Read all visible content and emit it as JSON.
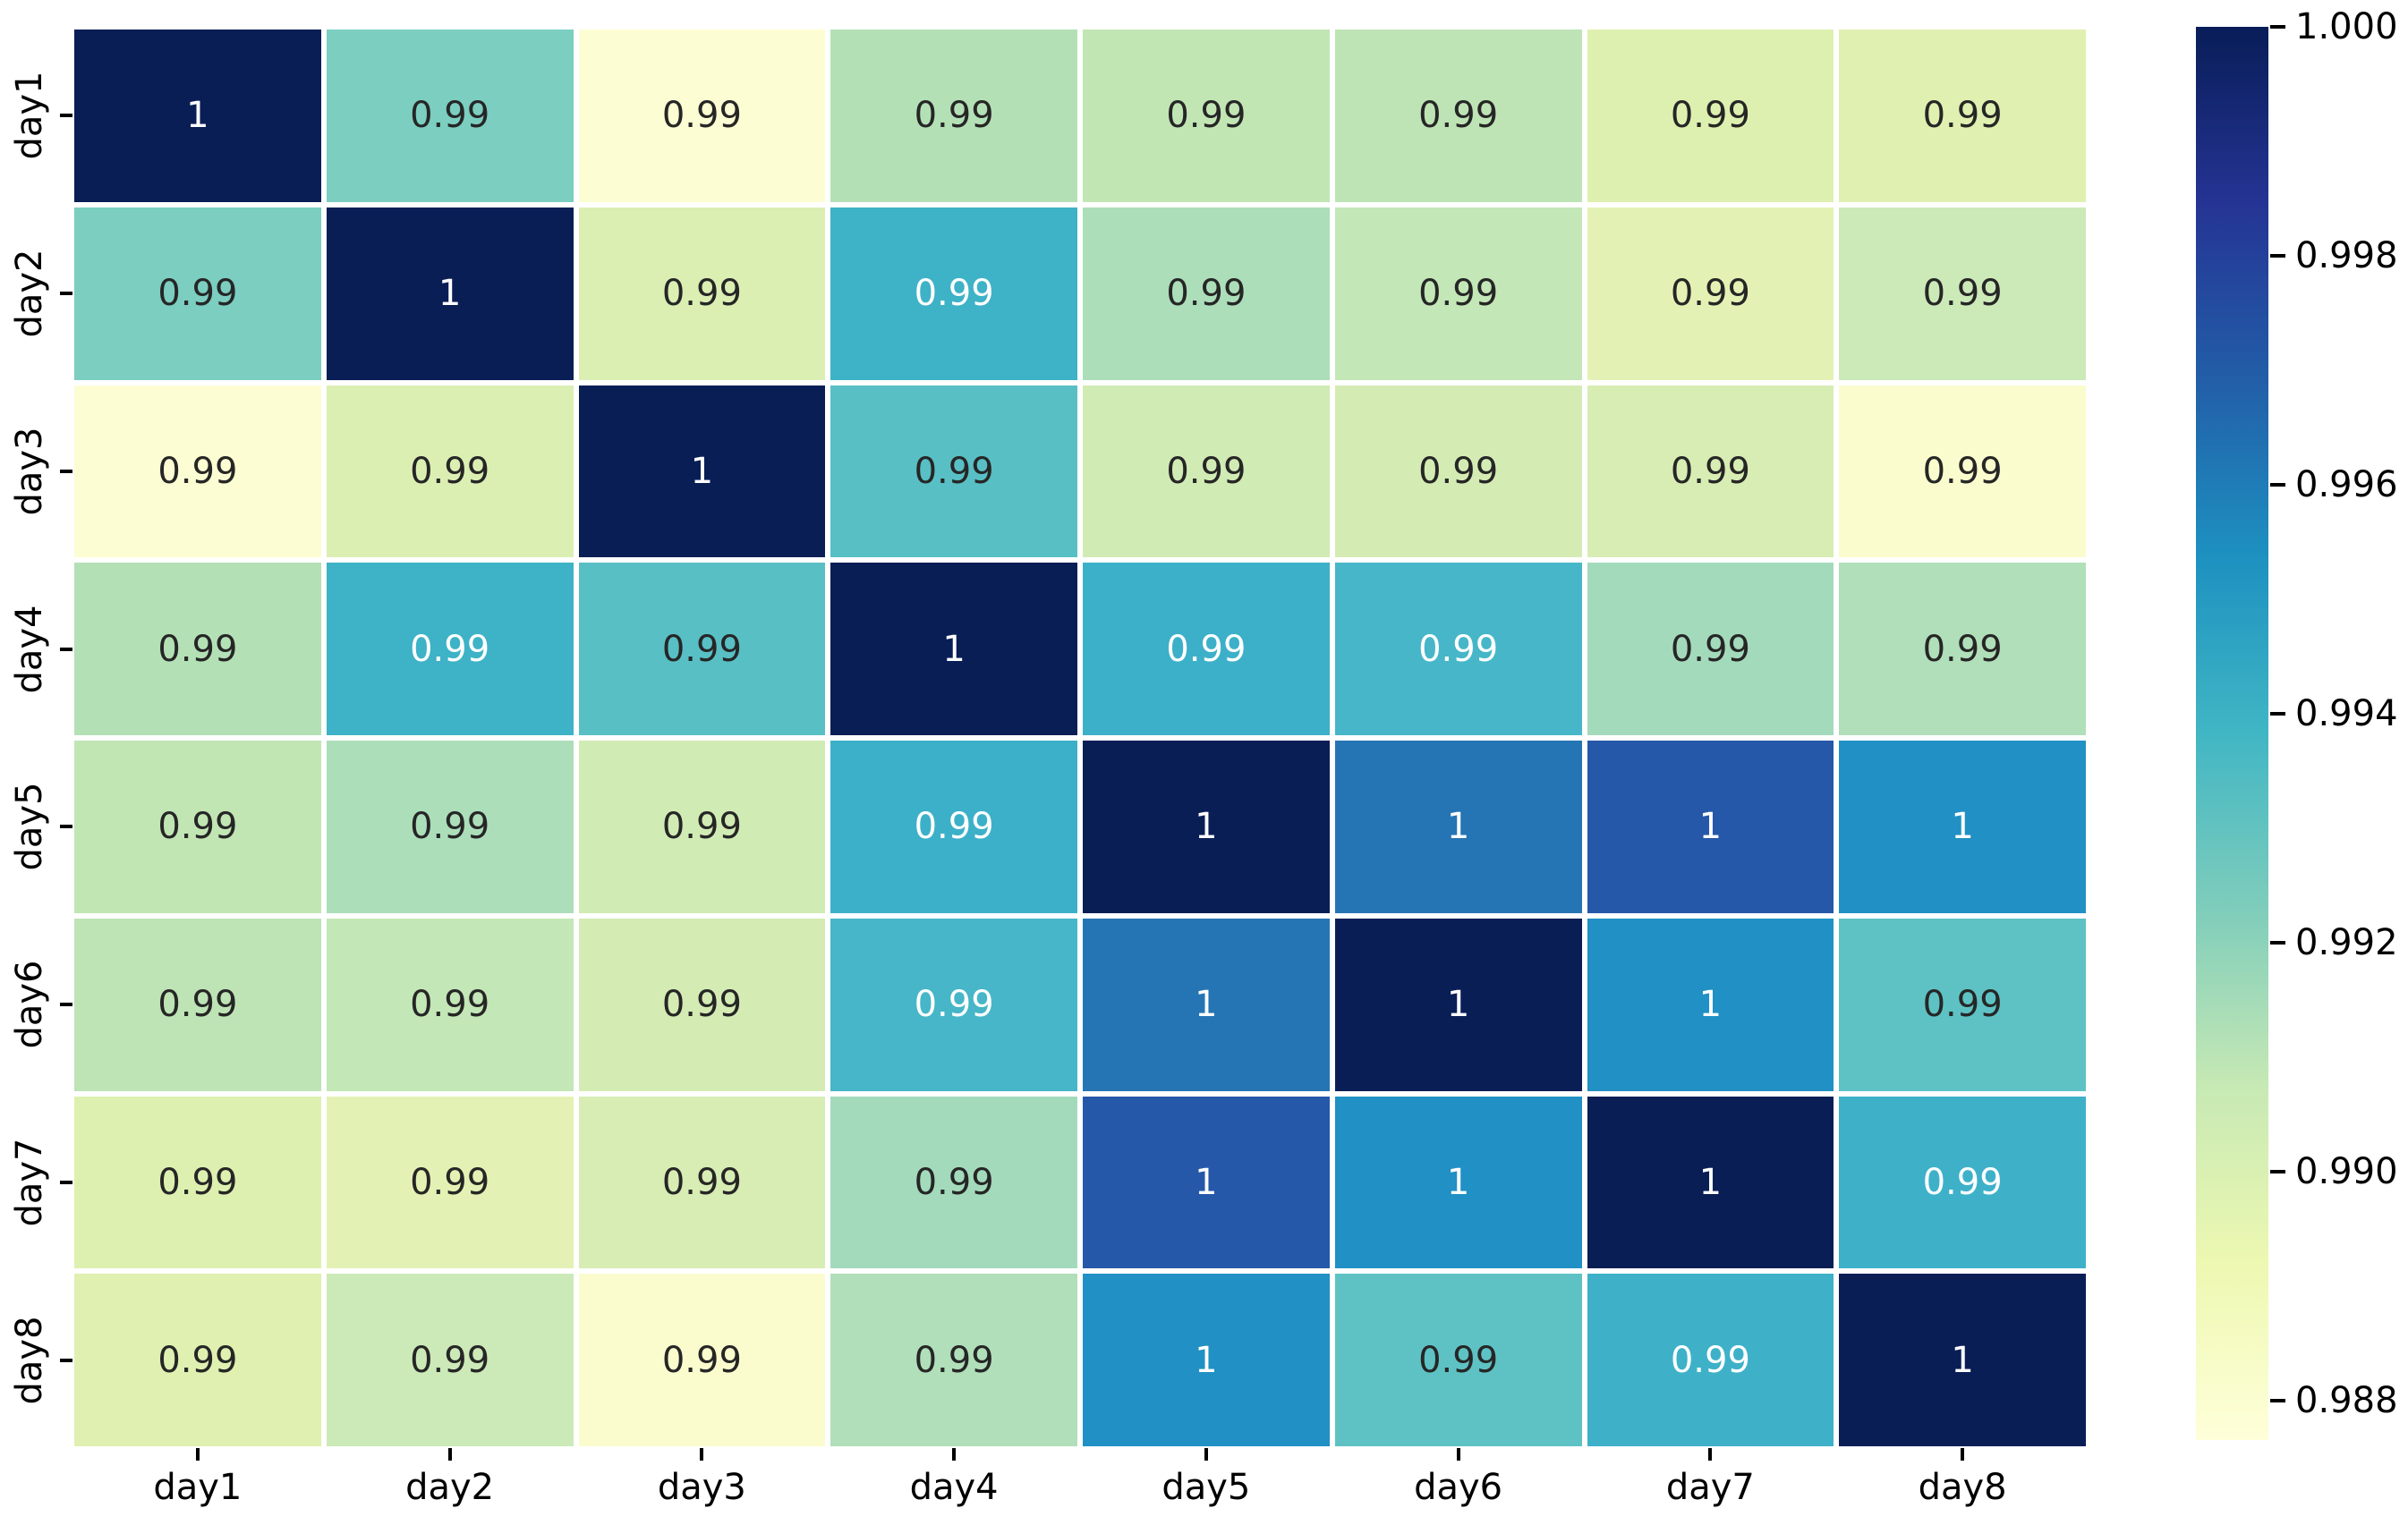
{
  "chart_data": {
    "type": "heatmap",
    "title": "",
    "xlabel": "",
    "ylabel": "",
    "colormap": "YlGnBu",
    "grid_line_color": "#ffffff",
    "background_color": "#ffffff",
    "annotation_colors": {
      "dark": "#262626",
      "light": "#ffffff"
    },
    "x_categories": [
      "day1",
      "day2",
      "day3",
      "day4",
      "day5",
      "day6",
      "day7",
      "day8"
    ],
    "y_categories": [
      "day1",
      "day2",
      "day3",
      "day4",
      "day5",
      "day6",
      "day7",
      "day8"
    ],
    "cell_labels": [
      [
        "1",
        "0.99",
        "0.99",
        "0.99",
        "0.99",
        "0.99",
        "0.99",
        "0.99"
      ],
      [
        "0.99",
        "1",
        "0.99",
        "0.99",
        "0.99",
        "0.99",
        "0.99",
        "0.99"
      ],
      [
        "0.99",
        "0.99",
        "1",
        "0.99",
        "0.99",
        "0.99",
        "0.99",
        "0.99"
      ],
      [
        "0.99",
        "0.99",
        "0.99",
        "1",
        "0.99",
        "0.99",
        "0.99",
        "0.99"
      ],
      [
        "0.99",
        "0.99",
        "0.99",
        "0.99",
        "1",
        "1",
        "1",
        "1"
      ],
      [
        "0.99",
        "0.99",
        "0.99",
        "0.99",
        "1",
        "1",
        "1",
        "0.99"
      ],
      [
        "0.99",
        "0.99",
        "0.99",
        "0.99",
        "1",
        "1",
        "1",
        "0.99"
      ],
      [
        "0.99",
        "0.99",
        "0.99",
        "0.99",
        "1",
        "0.99",
        "0.99",
        "1"
      ]
    ],
    "cell_colors": [
      [
        "#0a1e56",
        "#7bcec0",
        "#fdfdd3",
        "#b4e0b6",
        "#c1e6b4",
        "#bee4b5",
        "#def0b0",
        "#dff0b1"
      ],
      [
        "#7bcec0",
        "#0a1e56",
        "#dbefb3",
        "#3eb2c6",
        "#acdeba",
        "#c3e7b6",
        "#e3f2b4",
        "#cce9b8"
      ],
      [
        "#fdfdd3",
        "#dbefb3",
        "#0a1e56",
        "#58bfc5",
        "#d1ebb4",
        "#d4ecb4",
        "#d7edb3",
        "#fbfcce"
      ],
      [
        "#b4e0b6",
        "#3eb2c6",
        "#58bfc5",
        "#0a1e56",
        "#3db0c9",
        "#46b6c8",
        "#a3dabb",
        "#b0dfb9"
      ],
      [
        "#c1e6b4",
        "#acdeba",
        "#d1ebb4",
        "#3db0c9",
        "#0a1e56",
        "#2575b5",
        "#2658a9",
        "#2190c4"
      ],
      [
        "#bee4b5",
        "#c3e7b6",
        "#d4ecb4",
        "#46b6c8",
        "#2575b5",
        "#0a1e56",
        "#2090c5",
        "#5ec2c4"
      ],
      [
        "#def0b0",
        "#e3f2b4",
        "#d7edb3",
        "#a3dabb",
        "#2658a9",
        "#2090c5",
        "#0a1e56",
        "#3eb1c9"
      ],
      [
        "#dff0b1",
        "#cce9b8",
        "#fbfcce",
        "#b0dfb9",
        "#2190c4",
        "#5ec2c4",
        "#3eb1c9",
        "#0a1e56"
      ]
    ],
    "cell_text_tone": [
      [
        "light",
        "dark",
        "dark",
        "dark",
        "dark",
        "dark",
        "dark",
        "dark"
      ],
      [
        "dark",
        "light",
        "dark",
        "light",
        "dark",
        "dark",
        "dark",
        "dark"
      ],
      [
        "dark",
        "dark",
        "light",
        "dark",
        "dark",
        "dark",
        "dark",
        "dark"
      ],
      [
        "dark",
        "light",
        "dark",
        "light",
        "light",
        "light",
        "dark",
        "dark"
      ],
      [
        "dark",
        "dark",
        "dark",
        "light",
        "light",
        "light",
        "light",
        "light"
      ],
      [
        "dark",
        "dark",
        "dark",
        "light",
        "light",
        "light",
        "light",
        "dark"
      ],
      [
        "dark",
        "dark",
        "dark",
        "dark",
        "light",
        "light",
        "light",
        "light"
      ],
      [
        "dark",
        "dark",
        "dark",
        "dark",
        "light",
        "dark",
        "light",
        "light"
      ]
    ],
    "colorbar": {
      "vmax": 1.0,
      "vmin": 0.98766,
      "tick_labels": [
        "1.000",
        "0.998",
        "0.996",
        "0.994",
        "0.992",
        "0.990",
        "0.988"
      ],
      "tick_values": [
        1.0,
        0.998,
        0.996,
        0.994,
        0.992,
        0.99,
        0.988
      ],
      "gradient": [
        "#081d58",
        "#253494",
        "#225ea8",
        "#1d91c0",
        "#41b6c4",
        "#7fcdbb",
        "#c7e9b4",
        "#edf8b1",
        "#ffffd9"
      ]
    }
  }
}
